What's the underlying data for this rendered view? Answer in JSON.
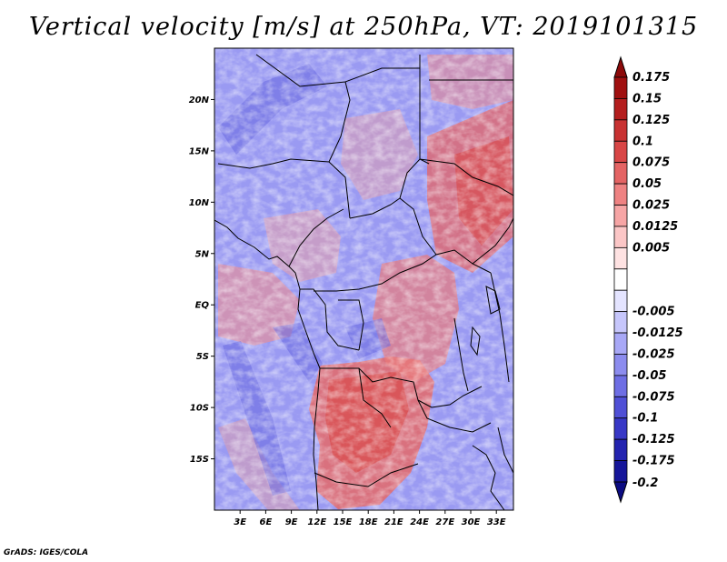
{
  "title": "Vertical velocity [m/s] at 250hPa, VT: 2019101315",
  "footer": "GrADS: IGES/COLA",
  "map": {
    "lon_range": [
      0,
      35
    ],
    "lat_range": [
      -20,
      25
    ],
    "lat_ticks": [
      {
        "value": 20,
        "label": "20N"
      },
      {
        "value": 15,
        "label": "15N"
      },
      {
        "value": 10,
        "label": "10N"
      },
      {
        "value": 5,
        "label": "5N"
      },
      {
        "value": 0,
        "label": "EQ"
      },
      {
        "value": -5,
        "label": "5S"
      },
      {
        "value": -10,
        "label": "10S"
      },
      {
        "value": -15,
        "label": "15S"
      }
    ],
    "lon_ticks": [
      {
        "value": 3,
        "label": "3E"
      },
      {
        "value": 6,
        "label": "6E"
      },
      {
        "value": 9,
        "label": "9E"
      },
      {
        "value": 12,
        "label": "12E"
      },
      {
        "value": 15,
        "label": "15E"
      },
      {
        "value": 18,
        "label": "18E"
      },
      {
        "value": 21,
        "label": "21E"
      },
      {
        "value": 24,
        "label": "24E"
      },
      {
        "value": 27,
        "label": "27E"
      },
      {
        "value": 30,
        "label": "30E"
      },
      {
        "value": 33,
        "label": "33E"
      }
    ]
  },
  "colorbar": {
    "levels": [
      {
        "label": "0.175",
        "color": "#a01010"
      },
      {
        "label": "0.15",
        "color": "#b41e1e"
      },
      {
        "label": "0.125",
        "color": "#c83232"
      },
      {
        "label": "0.1",
        "color": "#d84646"
      },
      {
        "label": "0.075",
        "color": "#e46464"
      },
      {
        "label": "0.05",
        "color": "#ee8282"
      },
      {
        "label": "0.025",
        "color": "#f6a5a5"
      },
      {
        "label": "0.0125",
        "color": "#fbc6c6"
      },
      {
        "label": "0.005",
        "color": "#fee2e2"
      },
      {
        "label": "",
        "color": "#ffffff"
      },
      {
        "label": "-0.005",
        "color": "#e4e4ff"
      },
      {
        "label": "-0.0125",
        "color": "#c6c6fb"
      },
      {
        "label": "-0.025",
        "color": "#a8a8f6"
      },
      {
        "label": "-0.05",
        "color": "#8c8cee"
      },
      {
        "label": "-0.075",
        "color": "#6e6ee4"
      },
      {
        "label": "-0.1",
        "color": "#5050d6"
      },
      {
        "label": "-0.125",
        "color": "#3838c6"
      },
      {
        "label": "-0.175",
        "color": "#2424b0"
      },
      {
        "label": "-0.2",
        "color": "#16169a"
      }
    ],
    "top_color": "#8c0a0a",
    "bottom_color": "#0c0c82"
  },
  "palette": {
    "blue_base": "#8c8cf0",
    "red_base": "#e06060",
    "border": "#000000"
  }
}
